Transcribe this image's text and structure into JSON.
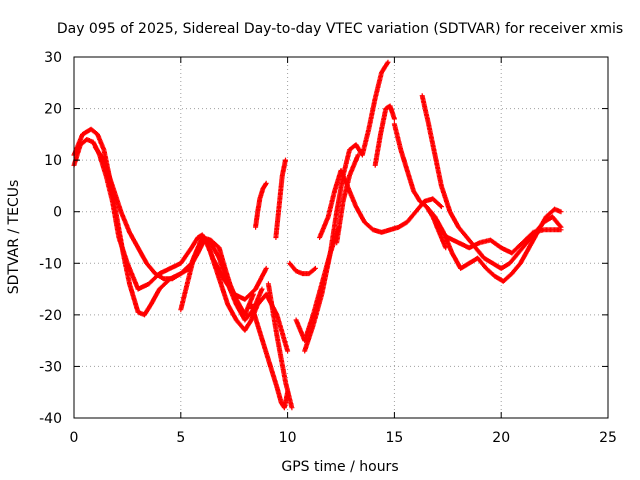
{
  "chart_data": {
    "type": "scatter",
    "title": "Day 095 of 2025, Sidereal Day-to-day VTEC variation (SDTVAR) for receiver xmis",
    "xlabel": "GPS time / hours",
    "ylabel": "SDTVAR / TECUs",
    "xlim": [
      0,
      25
    ],
    "ylim": [
      -40,
      30
    ],
    "xticks": [
      "0",
      "5",
      "10",
      "15",
      "20",
      "25"
    ],
    "yticks": [
      "-40",
      "-30",
      "-20",
      "-10",
      "0",
      "10",
      "20",
      "30"
    ],
    "grid": true,
    "marker": "plus",
    "color": "#ff0000",
    "series": [
      {
        "x": [
          0.0,
          0.3,
          0.6,
          0.9,
          1.2,
          1.5,
          1.8,
          2.1,
          2.5,
          3.0,
          3.5,
          4.0,
          4.5,
          5.0,
          5.5,
          5.8,
          6.0,
          6.2,
          6.5,
          7.0,
          7.5,
          8.0,
          8.5,
          9.0
        ],
        "y": [
          9,
          13,
          14,
          13.5,
          11,
          7,
          2,
          -5,
          -10,
          -15,
          -14,
          -12,
          -11,
          -10,
          -7,
          -5,
          -4.5,
          -5.5,
          -9,
          -13,
          -16,
          -17,
          -15,
          -11
        ]
      },
      {
        "x": [
          0.0,
          0.4,
          0.8,
          1.1,
          1.4,
          1.7,
          2.0,
          2.3,
          2.6,
          3.0,
          3.3,
          3.6,
          4.0,
          4.5,
          5.0,
          5.5,
          5.8,
          6.1,
          6.4,
          6.8,
          7.2,
          7.6,
          8.0,
          8.3,
          8.6,
          9.0,
          9.5,
          10.0
        ],
        "y": [
          11,
          15,
          16,
          15,
          12,
          6,
          -1,
          -8,
          -14,
          -19.5,
          -20,
          -18,
          -15,
          -13,
          -12,
          -10,
          -7,
          -5,
          -8,
          -13,
          -18,
          -21,
          -23,
          -21,
          -18,
          -16,
          -20,
          -27
        ]
      },
      {
        "x": [
          1.0,
          1.4,
          1.8,
          2.2,
          2.6,
          3.0,
          3.4,
          3.8,
          4.2,
          4.6,
          5.0,
          5.4,
          5.8,
          6.1,
          6.4,
          6.8,
          7.2,
          7.6,
          8.0,
          8.4,
          8.8
        ],
        "y": [
          12.5,
          10,
          5,
          0,
          -4,
          -7,
          -10,
          -12,
          -13,
          -13,
          -12,
          -11,
          -8,
          -5.5,
          -6,
          -9,
          -14,
          -18,
          -21,
          -19,
          -15
        ]
      },
      {
        "x": [
          5.0,
          5.3,
          5.6,
          6.0,
          6.4,
          6.8,
          7.0,
          7.3,
          7.6,
          8.0,
          8.4
        ],
        "y": [
          -19,
          -14,
          -9,
          -5,
          -5.5,
          -7,
          -10,
          -14,
          -17,
          -20,
          -16
        ]
      },
      {
        "x": [
          8.3,
          8.6,
          8.9,
          9.2,
          9.5,
          9.7,
          9.85,
          10.0
        ],
        "y": [
          -18,
          -22,
          -26,
          -30,
          -34,
          -37,
          -38,
          -35
        ]
      },
      {
        "x": [
          9.1,
          9.5,
          9.9,
          10.2
        ],
        "y": [
          -14,
          -24,
          -33,
          -38
        ]
      },
      {
        "x": [
          8.5,
          8.6,
          8.7,
          8.85,
          9.0
        ],
        "y": [
          -3,
          0,
          2.5,
          4.5,
          5.5
        ]
      },
      {
        "x": [
          9.45,
          9.6,
          9.75,
          9.9
        ],
        "y": [
          -5,
          1,
          7,
          10
        ]
      },
      {
        "x": [
          10.1,
          10.4,
          10.7,
          11.0,
          11.3
        ],
        "y": [
          -10,
          -11.5,
          -12,
          -12,
          -11
        ]
      },
      {
        "x": [
          10.4,
          10.8,
          11.2,
          11.6,
          12.0,
          12.4
        ],
        "y": [
          -21,
          -25,
          -20,
          -14,
          -8,
          -3
        ]
      },
      {
        "x": [
          10.8,
          11.2,
          11.6,
          12.0,
          12.3,
          12.6,
          12.9,
          13.2,
          13.5,
          13.8,
          14.1,
          14.4,
          14.7
        ],
        "y": [
          -27,
          -22,
          -16,
          -8,
          0,
          7,
          12,
          13,
          11,
          16,
          22,
          27,
          29
        ]
      },
      {
        "x": [
          11.5,
          11.9,
          12.2,
          12.5,
          12.8,
          13.2,
          13.6,
          14.0,
          14.4,
          14.8,
          15.2,
          15.6,
          16.0,
          16.4,
          16.8,
          17.2
        ],
        "y": [
          -5,
          -1,
          4,
          8,
          5,
          1,
          -2,
          -3.5,
          -4,
          -3.5,
          -3,
          -2,
          0,
          2,
          2.5,
          1
        ]
      },
      {
        "x": [
          12.3,
          12.6,
          12.9,
          13.3
        ],
        "y": [
          -6,
          2,
          7,
          11
        ]
      },
      {
        "x": [
          14.1,
          14.35,
          14.6,
          14.8,
          15.0
        ],
        "y": [
          9,
          15,
          20,
          20.5,
          18
        ]
      },
      {
        "x": [
          15.0,
          15.3,
          15.6,
          15.9,
          16.2,
          16.5,
          16.8,
          17.1,
          17.4
        ],
        "y": [
          17,
          12,
          8,
          4,
          2,
          1,
          -1,
          -4,
          -7
        ]
      },
      {
        "x": [
          16.3,
          16.6,
          16.9,
          17.2,
          17.6,
          18.0,
          18.4,
          18.8,
          19.2,
          19.6,
          20.0,
          20.4,
          20.8,
          21.2,
          21.6,
          22.0,
          22.4,
          22.8
        ],
        "y": [
          22.5,
          17,
          11,
          5,
          0,
          -3,
          -5,
          -7,
          -9,
          -10,
          -11,
          -10,
          -8,
          -6,
          -4,
          -2,
          -1,
          -3
        ]
      },
      {
        "x": [
          16.5,
          16.9,
          17.3,
          17.7,
          18.1,
          18.5,
          18.9,
          19.3,
          19.7,
          20.1,
          20.5,
          20.9,
          21.3,
          21.7,
          22.1,
          22.5,
          22.8
        ],
        "y": [
          1,
          -1,
          -4,
          -8,
          -11,
          -10,
          -9,
          -11,
          -12.5,
          -13.5,
          -12,
          -10,
          -7,
          -4,
          -1,
          0.5,
          0
        ]
      },
      {
        "x": [
          17.0,
          17.5,
          18.0,
          18.5,
          19.0,
          19.5,
          20.0,
          20.5,
          21.0,
          21.5,
          22.0,
          22.5,
          22.8
        ],
        "y": [
          -3,
          -5,
          -6,
          -7,
          -6,
          -5.5,
          -7,
          -8,
          -6,
          -4,
          -3.5,
          -3.5,
          -3.5
        ]
      }
    ]
  }
}
